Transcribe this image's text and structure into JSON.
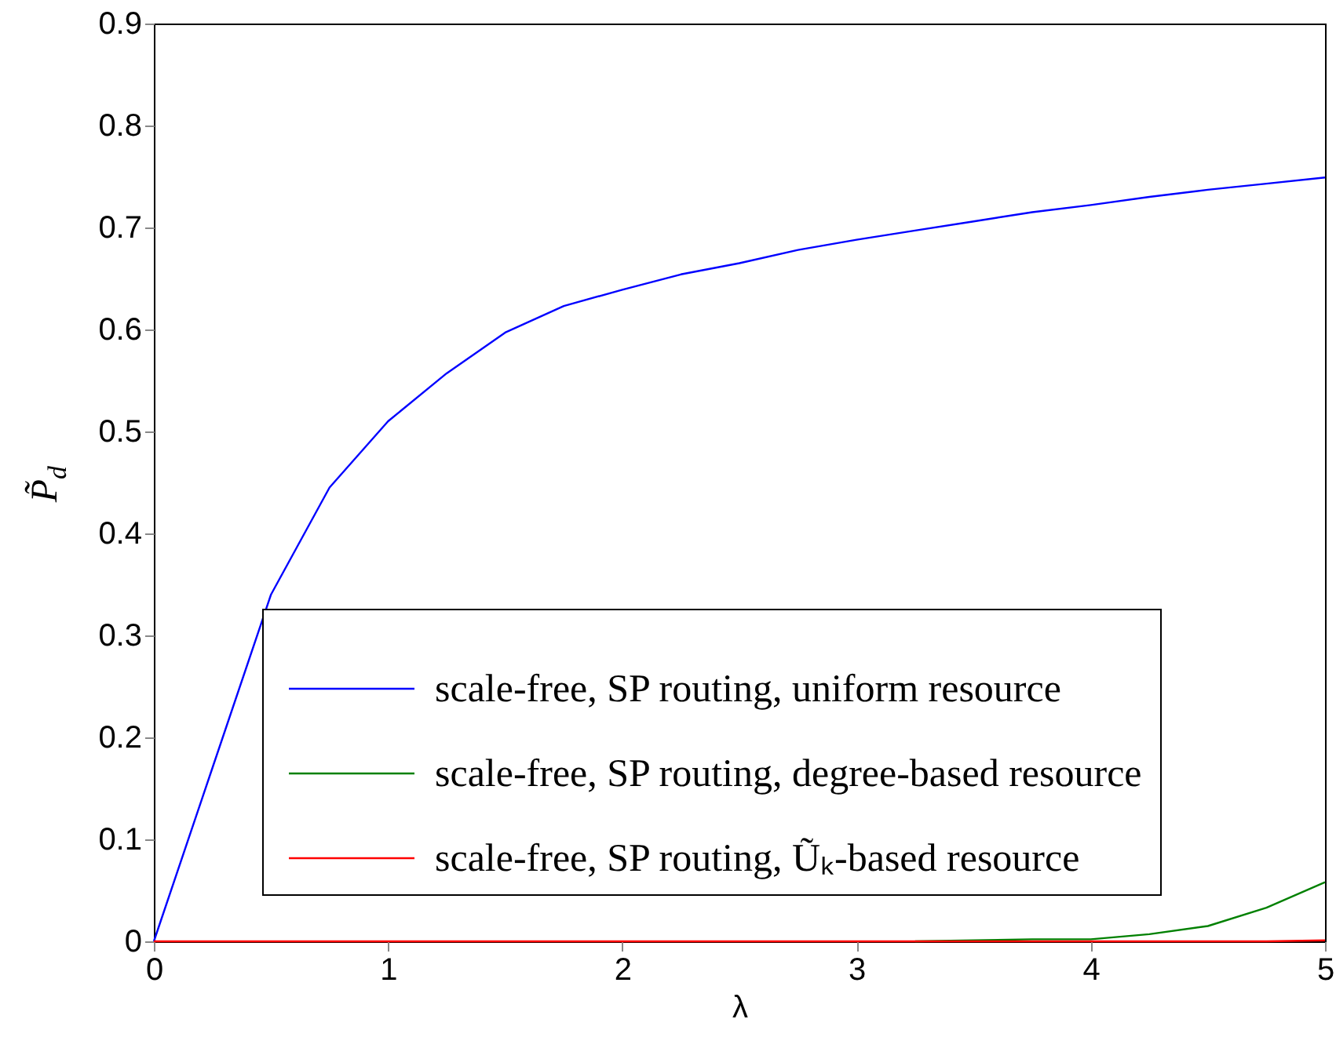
{
  "chart_data": {
    "type": "line",
    "xlabel": "λ",
    "ylabel": "P̃$_{d}$",
    "x": [
      0,
      0.25,
      0.5,
      0.75,
      1,
      1.25,
      1.5,
      1.75,
      2,
      2.25,
      2.5,
      2.75,
      3,
      3.25,
      3.5,
      3.75,
      4,
      4.25,
      4.5,
      4.75,
      5
    ],
    "series": [
      {
        "name": "scale-free, SP routing, uniform resource",
        "color": "#0000ff",
        "values": [
          0,
          0.17,
          0.34,
          0.445,
          0.51,
          0.557,
          0.597,
          0.623,
          0.639,
          0.654,
          0.665,
          0.678,
          0.688,
          0.697,
          0.706,
          0.715,
          0.722,
          0.73,
          0.737,
          0.743,
          0.749
        ]
      },
      {
        "name": "scale-free, SP routing, degree-based resource",
        "color": "#008000",
        "values": [
          null,
          null,
          null,
          null,
          null,
          null,
          null,
          null,
          null,
          null,
          null,
          null,
          null,
          0,
          0.001,
          0.002,
          0.002,
          0.007,
          0.015,
          0.033,
          0.058
        ]
      },
      {
        "name": "scale-free, SP routing, Ũₖ-based resource",
        "color": "#ff0000",
        "values": [
          0,
          0,
          0,
          0,
          0,
          0,
          0,
          0,
          0,
          0,
          0,
          0,
          0,
          0,
          0,
          0,
          0,
          0,
          0,
          0,
          0.001
        ]
      }
    ],
    "xlim": [
      0,
      5
    ],
    "ylim": [
      0,
      0.9
    ],
    "xticks": [
      0,
      1,
      2,
      3,
      4,
      5
    ],
    "yticks": [
      0,
      0.1,
      0.2,
      0.3,
      0.4,
      0.5,
      0.6,
      0.7,
      0.8,
      0.9
    ],
    "grid": false,
    "legend": "bottom right",
    "marker": "none",
    "line_style": "solid"
  }
}
